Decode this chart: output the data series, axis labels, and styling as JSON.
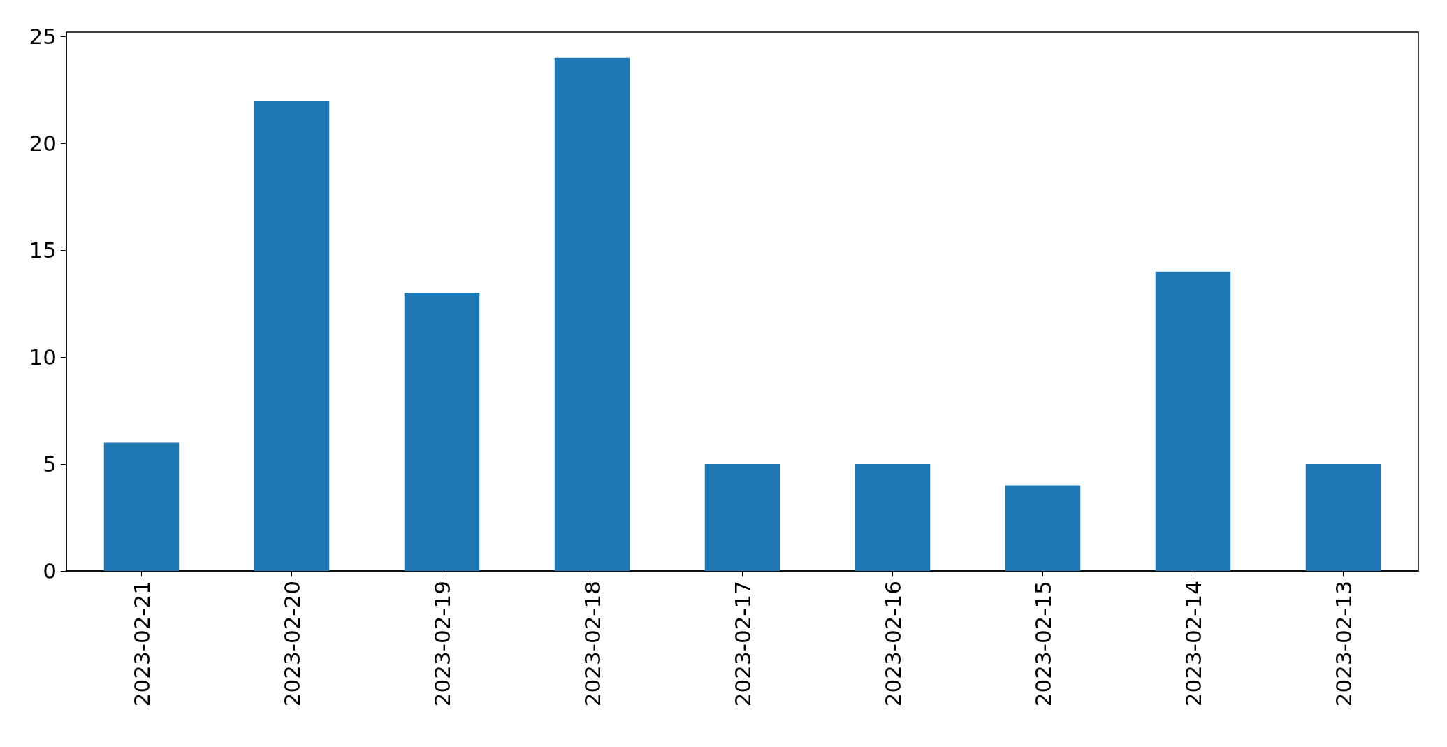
{
  "chart_data": {
    "type": "bar",
    "categories": [
      "2023-02-21",
      "2023-02-20",
      "2023-02-19",
      "2023-02-18",
      "2023-02-17",
      "2023-02-16",
      "2023-02-15",
      "2023-02-14",
      "2023-02-13"
    ],
    "values": [
      6,
      22,
      13,
      24,
      5,
      5,
      4,
      14,
      5
    ],
    "color": "#1f77b4",
    "ylim": [
      0,
      25.2
    ],
    "yticks": [
      0,
      5,
      10,
      15,
      20,
      25
    ]
  }
}
